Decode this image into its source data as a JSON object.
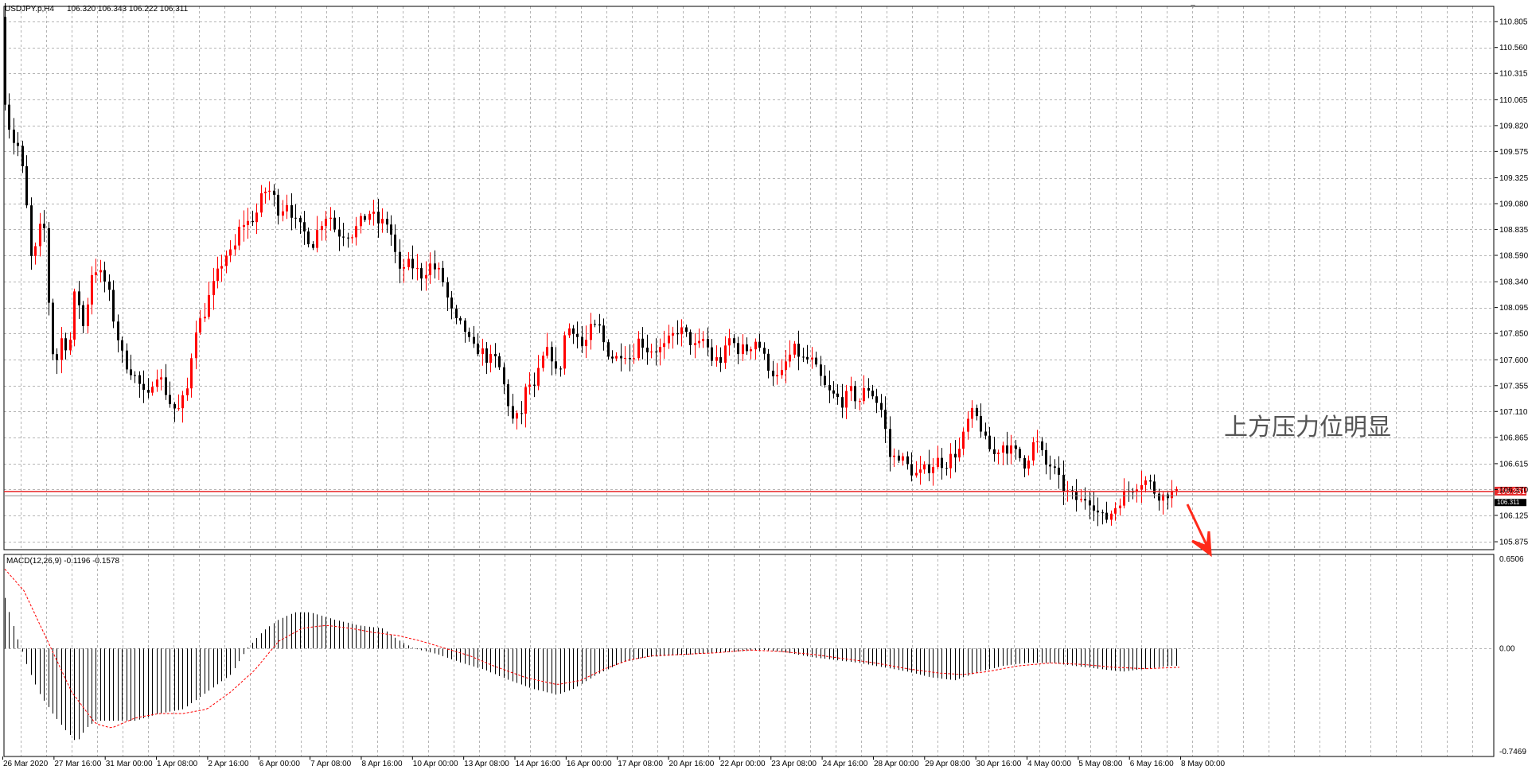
{
  "header": {
    "symbol": "USDJPY.p,H4",
    "ohlc": "106.320 106.343 106.222 106.311"
  },
  "macd_header": {
    "label": "MACD(12,26,9) -0.1196 -0.1578"
  },
  "annotation": {
    "text": "上方压力位明显"
  },
  "price_badges": {
    "current": "106.351",
    "bid": "106.311"
  },
  "colors": {
    "bull": "#ff0000",
    "bear": "#000000",
    "grid": "#b4b4b4",
    "line_red": "#e8292a",
    "line_gray": "#8c8c8c",
    "arrow": "#ff2a1a"
  },
  "chart_data": [
    {
      "type": "candlestick",
      "title": "USDJPY.p,H4",
      "ylim": [
        105.8,
        110.95
      ],
      "price_ticks": [
        "110.805",
        "110.560",
        "110.315",
        "110.065",
        "109.820",
        "109.575",
        "109.325",
        "109.080",
        "108.835",
        "108.590",
        "108.340",
        "108.095",
        "107.850",
        "107.600",
        "107.355",
        "107.110",
        "106.865",
        "106.615",
        "106.370",
        "106.125",
        "105.875"
      ],
      "x_labels": [
        "26 Mar 2020",
        "27 Mar 16:00",
        "31 Mar 00:00",
        "1 Apr 08:00",
        "2 Apr 16:00",
        "6 Apr 00:00",
        "7 Apr 08:00",
        "8 Apr 16:00",
        "10 Apr 00:00",
        "13 Apr 08:00",
        "14 Apr 16:00",
        "16 Apr 00:00",
        "17 Apr 08:00",
        "20 Apr 16:00",
        "22 Apr 00:00",
        "23 Apr 08:00",
        "24 Apr 16:00",
        "28 Apr 00:00",
        "29 Apr 08:00",
        "30 Apr 16:00",
        "4 May 00:00",
        "5 May 08:00",
        "6 May 16:00",
        "8 May 00:00"
      ],
      "levels": {
        "resistance": 106.351,
        "bid": 106.311
      },
      "grid": true
    },
    {
      "type": "macd",
      "title": "MACD(12,26,9) -0.1196 -0.1578",
      "ylim": [
        -0.7469,
        0.6506
      ],
      "ticks": [
        "0.6506",
        "0.00",
        "-0.7469"
      ],
      "main": -0.1196,
      "signal": -0.1578
    }
  ]
}
